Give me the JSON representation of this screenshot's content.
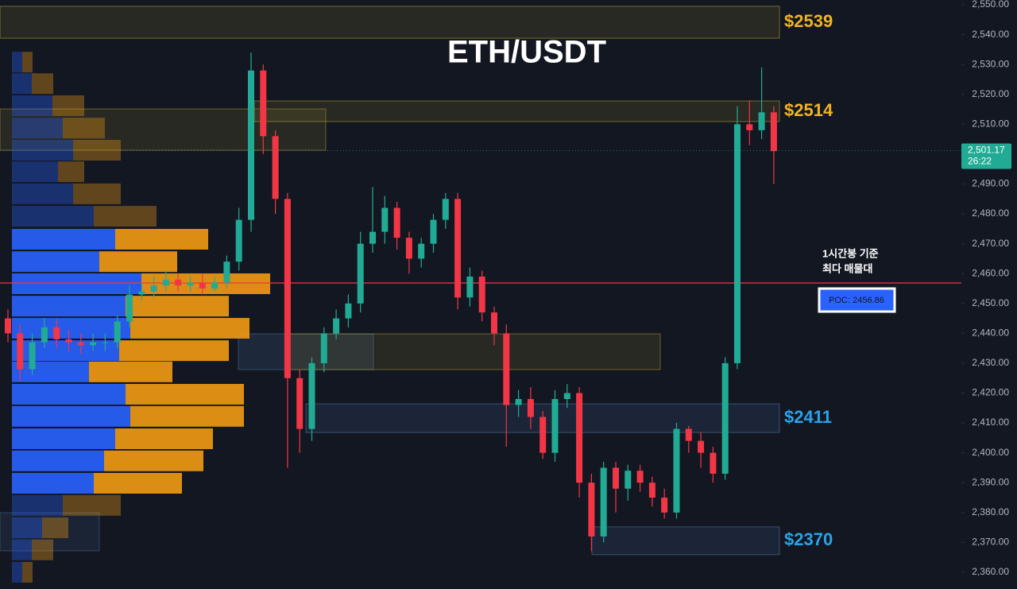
{
  "chart_data": {
    "type": "candlestick",
    "title": "ETH/USDT",
    "up_color": "#22ab94",
    "down_color": "#f23645",
    "open": [
      2445,
      2440,
      2428,
      2437,
      2442,
      2438,
      2437,
      2436,
      2437,
      2437,
      2444,
      2453,
      2454,
      2456,
      2458,
      2456,
      2457,
      2455,
      2457,
      2464,
      2478,
      2528,
      2506,
      2485,
      2425,
      2408,
      2430,
      2440,
      2445,
      2450,
      2470,
      2474,
      2482,
      2472,
      2465,
      2470,
      2478,
      2485,
      2452,
      2459,
      2447,
      2440,
      2416,
      2418,
      2412,
      2400,
      2418,
      2420,
      2390,
      2372,
      2395,
      2388,
      2394,
      2390,
      2385,
      2380,
      2408,
      2404,
      2400,
      2393,
      2430,
      2510,
      2508,
      2514
    ],
    "high": [
      2448,
      2443,
      2440,
      2445,
      2445,
      2441,
      2440,
      2440,
      2440,
      2446,
      2456,
      2457,
      2459,
      2461,
      2460,
      2459,
      2460,
      2459,
      2466,
      2482,
      2534,
      2530,
      2508,
      2487,
      2428,
      2432,
      2442,
      2448,
      2453,
      2474,
      2489,
      2486,
      2484,
      2474,
      2472,
      2480,
      2487,
      2487,
      2462,
      2461,
      2449,
      2443,
      2421,
      2422,
      2414,
      2421,
      2423,
      2422,
      2393,
      2397,
      2397,
      2396,
      2396,
      2392,
      2388,
      2410,
      2409,
      2407,
      2402,
      2432,
      2516,
      2518,
      2529,
      2516
    ],
    "low": [
      2437,
      2424,
      2426,
      2435,
      2435,
      2434,
      2433,
      2434,
      2434,
      2435,
      2442,
      2451,
      2452,
      2454,
      2454,
      2454,
      2453,
      2454,
      2455,
      2461,
      2474,
      2500,
      2480,
      2395,
      2400,
      2404,
      2427,
      2438,
      2442,
      2447,
      2467,
      2470,
      2468,
      2460,
      2462,
      2467,
      2475,
      2448,
      2449,
      2444,
      2436,
      2402,
      2412,
      2408,
      2398,
      2397,
      2415,
      2385,
      2367,
      2370,
      2380,
      2384,
      2387,
      2382,
      2378,
      2378,
      2400,
      2395,
      2390,
      2391,
      2428,
      2503,
      2505,
      2490
    ],
    "close": [
      2440,
      2428,
      2437,
      2442,
      2438,
      2437,
      2436,
      2437,
      2437,
      2444,
      2453,
      2454,
      2456,
      2458,
      2456,
      2457,
      2455,
      2457,
      2464,
      2478,
      2528,
      2506,
      2485,
      2425,
      2408,
      2430,
      2440,
      2445,
      2450,
      2470,
      2474,
      2482,
      2472,
      2465,
      2470,
      2478,
      2485,
      2452,
      2459,
      2447,
      2440,
      2416,
      2418,
      2412,
      2400,
      2418,
      2420,
      2390,
      2372,
      2395,
      2388,
      2394,
      2390,
      2385,
      2380,
      2408,
      2404,
      2400,
      2393,
      2430,
      2510,
      2508,
      2514,
      2501
    ],
    "ylim": [
      2354.4,
      2551.6
    ],
    "yticks": [
      {
        "value": 2360,
        "label": "2,360.00"
      },
      {
        "value": 2370,
        "label": "2,370.00"
      },
      {
        "value": 2380,
        "label": "2,380.00"
      },
      {
        "value": 2390,
        "label": "2,390.00"
      },
      {
        "value": 2400,
        "label": "2,400.00"
      },
      {
        "value": 2410,
        "label": "2,410.00"
      },
      {
        "value": 2420,
        "label": "2,420.00"
      },
      {
        "value": 2430,
        "label": "2,430.00"
      },
      {
        "value": 2440,
        "label": "2,440.00"
      },
      {
        "value": 2450,
        "label": "2,450.00"
      },
      {
        "value": 2460,
        "label": "2,460.00"
      },
      {
        "value": 2470,
        "label": "2,470.00"
      },
      {
        "value": 2480,
        "label": "2,480.00"
      },
      {
        "value": 2490,
        "label": "2,490.00"
      },
      {
        "value": 2500,
        "label": "2,500.00"
      },
      {
        "value": 2510,
        "label": "2,510.00"
      },
      {
        "value": 2520,
        "label": "2,520.00"
      },
      {
        "value": 2530,
        "label": "2,530.00"
      },
      {
        "value": 2540,
        "label": "2,540.00"
      },
      {
        "value": 2550,
        "label": "2,550.00"
      }
    ],
    "volume_profile": {
      "levels": [
        2530.8,
        2523.6,
        2516.2,
        2508.7,
        2501.3,
        2494.1,
        2486.7,
        2479.2,
        2471.5,
        2464.0,
        2456.6,
        2449.1,
        2441.7,
        2434.2,
        2427.1,
        2419.6,
        2412.2,
        2404.7,
        2397.3,
        2389.8,
        2382.4,
        2374.9,
        2367.5,
        2360.0
      ],
      "buy_color": "#2962ff",
      "sell_color": "#f29a13",
      "buy": [
        13,
        25,
        51,
        64,
        77,
        58,
        77,
        103,
        130,
        110,
        163,
        143,
        149,
        135,
        97,
        143,
        149,
        130,
        116,
        103,
        64,
        38,
        25,
        13
      ],
      "sell": [
        13,
        27,
        40,
        53,
        60,
        33,
        60,
        79,
        117,
        98,
        162,
        130,
        150,
        138,
        105,
        149,
        143,
        123,
        125,
        111,
        73,
        33,
        27,
        13
      ]
    },
    "zones": [
      {
        "label": "$2539",
        "top": 2549.5,
        "bottom": 2538.8,
        "color": "#f0b323"
      },
      {
        "label": "$2514",
        "top": 2517.8,
        "bottom": 2510.9,
        "color": "#f0b323"
      },
      {
        "label": "$2411",
        "top": 2416.4,
        "bottom": 2406.8,
        "color": "#2aa3e8"
      },
      {
        "label": "$2370",
        "top": 2375.2,
        "bottom": 2365.9,
        "color": "#2aa3e8"
      }
    ],
    "poc": {
      "value": 2456.86,
      "label": "POC: 2456.86",
      "color": "#f23645"
    },
    "annotation": [
      "1시간봉 기준",
      "최다 매물대"
    ],
    "last_price": {
      "value": 2501.17,
      "label": "2,501.17"
    },
    "countdown": "26:22"
  }
}
